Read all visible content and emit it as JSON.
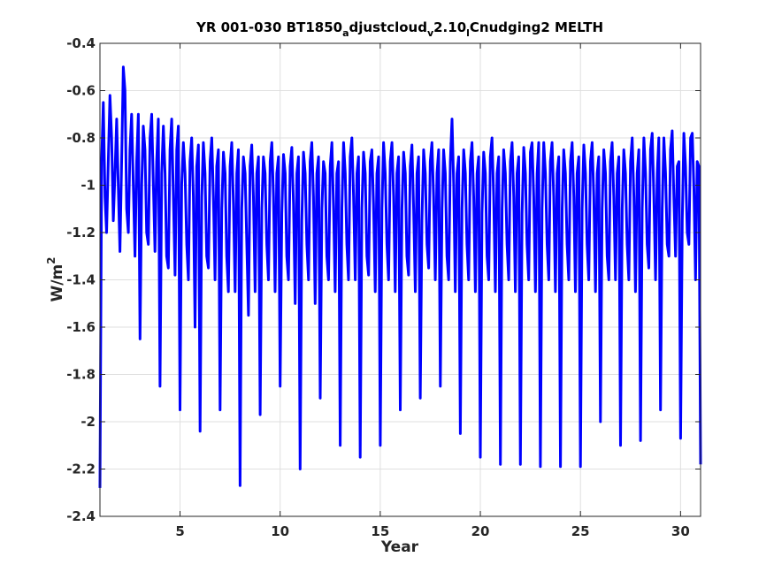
{
  "chart_data": {
    "type": "line",
    "title_parts": {
      "t1": "YR 001-030 BT1850",
      "s1": "a",
      "t2": "djustcloud",
      "s2": "v",
      "t3": "2.10",
      "s3": "l",
      "t4": "Cnudging2 MELTH"
    },
    "xlabel": "Year",
    "ylabel_base": "W/m",
    "ylabel_sup": "2",
    "xlim": [
      1,
      31
    ],
    "ylim": [
      -2.4,
      -0.4
    ],
    "xticks": [
      5,
      10,
      15,
      20,
      25,
      30
    ],
    "xtick_labels": [
      "5",
      "10",
      "15",
      "20",
      "25",
      "30"
    ],
    "yticks": [
      -2.4,
      -2.2,
      -2.0,
      -1.8,
      -1.6,
      -1.4,
      -1.2,
      -1.0,
      -0.8,
      -0.6,
      -0.4
    ],
    "ytick_labels": [
      "-2.4",
      "-2.2",
      "-2",
      "-1.8",
      "-1.6",
      "-1.4",
      "-1.2",
      "-1",
      "-0.8",
      "-0.6",
      "-0.4"
    ],
    "grid": true,
    "line_color": "#0000ff",
    "series": [
      {
        "x_start": 1,
        "x_step": 0.0833333,
        "values": [
          -2.28,
          -0.9,
          -0.65,
          -1.05,
          -1.2,
          -0.9,
          -0.62,
          -0.8,
          -1.15,
          -0.95,
          -0.72,
          -1.0,
          -1.28,
          -0.9,
          -0.5,
          -0.6,
          -1.1,
          -1.2,
          -0.85,
          -0.7,
          -1.0,
          -1.3,
          -0.9,
          -0.7,
          -1.65,
          -1.0,
          -0.75,
          -0.85,
          -1.2,
          -1.25,
          -0.8,
          -0.7,
          -1.0,
          -1.28,
          -0.9,
          -0.72,
          -1.85,
          -0.95,
          -0.75,
          -0.95,
          -1.3,
          -1.35,
          -0.85,
          -0.72,
          -1.05,
          -1.38,
          -0.85,
          -0.75,
          -1.95,
          -1.0,
          -0.82,
          -0.95,
          -1.25,
          -1.4,
          -0.9,
          -0.8,
          -1.05,
          -1.6,
          -0.92,
          -0.83,
          -2.04,
          -1.05,
          -0.82,
          -0.95,
          -1.3,
          -1.35,
          -0.9,
          -0.8,
          -1.05,
          -1.4,
          -0.92,
          -0.85,
          -1.95,
          -1.1,
          -0.86,
          -0.95,
          -1.3,
          -1.45,
          -0.92,
          -0.82,
          -1.08,
          -1.45,
          -0.95,
          -0.85,
          -2.27,
          -1.1,
          -0.88,
          -0.95,
          -1.25,
          -1.55,
          -0.92,
          -0.83,
          -1.05,
          -1.45,
          -0.95,
          -0.88,
          -1.97,
          -1.1,
          -0.88,
          -0.95,
          -1.25,
          -1.4,
          -0.9,
          -0.82,
          -1.05,
          -1.45,
          -0.95,
          -0.88,
          -1.85,
          -1.12,
          -0.87,
          -0.95,
          -1.3,
          -1.4,
          -0.92,
          -0.84,
          -1.08,
          -1.5,
          -0.95,
          -0.88,
          -2.2,
          -1.15,
          -0.86,
          -0.95,
          -1.25,
          -1.4,
          -0.9,
          -0.82,
          -1.05,
          -1.5,
          -0.95,
          -0.88,
          -1.9,
          -1.1,
          -0.9,
          -0.95,
          -1.3,
          -1.4,
          -0.92,
          -0.82,
          -1.1,
          -1.45,
          -0.95,
          -0.9,
          -2.1,
          -1.1,
          -0.82,
          -0.95,
          -1.25,
          -1.4,
          -0.88,
          -0.8,
          -1.05,
          -1.4,
          -0.95,
          -0.88,
          -2.15,
          -1.1,
          -0.86,
          -0.95,
          -1.3,
          -1.38,
          -0.9,
          -0.85,
          -1.08,
          -1.45,
          -0.95,
          -0.88,
          -2.1,
          -1.1,
          -0.82,
          -0.95,
          -1.25,
          -1.4,
          -0.9,
          -0.82,
          -1.05,
          -1.45,
          -0.95,
          -0.88,
          -1.95,
          -1.1,
          -0.86,
          -0.95,
          -1.3,
          -1.38,
          -0.92,
          -0.83,
          -1.1,
          -1.45,
          -0.95,
          -0.88,
          -1.9,
          -1.15,
          -0.85,
          -0.95,
          -1.25,
          -1.35,
          -0.9,
          -0.82,
          -1.05,
          -1.4,
          -0.95,
          -0.85,
          -1.85,
          -1.1,
          -0.85,
          -0.95,
          -1.3,
          -1.4,
          -0.9,
          -0.72,
          -1.0,
          -1.45,
          -0.95,
          -0.88,
          -2.05,
          -1.1,
          -0.85,
          -0.95,
          -1.25,
          -1.4,
          -0.9,
          -0.82,
          -1.05,
          -1.45,
          -0.95,
          -0.88,
          -2.15,
          -1.12,
          -0.86,
          -0.95,
          -1.3,
          -1.4,
          -0.88,
          -0.8,
          -1.05,
          -1.45,
          -0.95,
          -0.88,
          -2.18,
          -1.1,
          -0.85,
          -0.95,
          -1.25,
          -1.4,
          -0.9,
          -0.82,
          -1.05,
          -1.45,
          -0.95,
          -0.88,
          -2.18,
          -1.12,
          -0.84,
          -0.95,
          -1.25,
          -1.4,
          -0.86,
          -0.82,
          -1.05,
          -1.45,
          -0.95,
          -0.82,
          -2.19,
          -1.1,
          -0.82,
          -0.95,
          -1.25,
          -1.4,
          -0.9,
          -0.82,
          -1.05,
          -1.45,
          -0.95,
          -0.88,
          -2.19,
          -1.1,
          -0.85,
          -0.95,
          -1.25,
          -1.4,
          -0.9,
          -0.82,
          -1.05,
          -1.45,
          -0.95,
          -0.88,
          -2.19,
          -1.1,
          -0.83,
          -0.95,
          -1.25,
          -1.4,
          -0.9,
          -0.82,
          -1.05,
          -1.45,
          -0.95,
          -0.88,
          -2.0,
          -1.1,
          -0.85,
          -0.95,
          -1.3,
          -1.4,
          -0.9,
          -0.82,
          -1.05,
          -1.4,
          -0.95,
          -0.88,
          -2.1,
          -1.1,
          -0.85,
          -0.95,
          -1.25,
          -1.4,
          -0.9,
          -0.8,
          -1.05,
          -1.45,
          -0.95,
          -0.85,
          -2.08,
          -1.1,
          -0.8,
          -0.95,
          -1.25,
          -1.35,
          -0.85,
          -0.78,
          -1.05,
          -1.4,
          -0.95,
          -0.8,
          -1.95,
          -1.1,
          -0.8,
          -0.95,
          -1.25,
          -1.3,
          -0.85,
          -0.77,
          -1.05,
          -1.3,
          -0.92,
          -0.9,
          -2.07,
          -1.15,
          -0.78,
          -0.92,
          -1.2,
          -1.25,
          -0.8,
          -0.78,
          -1.02,
          -1.4,
          -0.9,
          -0.92,
          -2.18
        ]
      }
    ]
  }
}
